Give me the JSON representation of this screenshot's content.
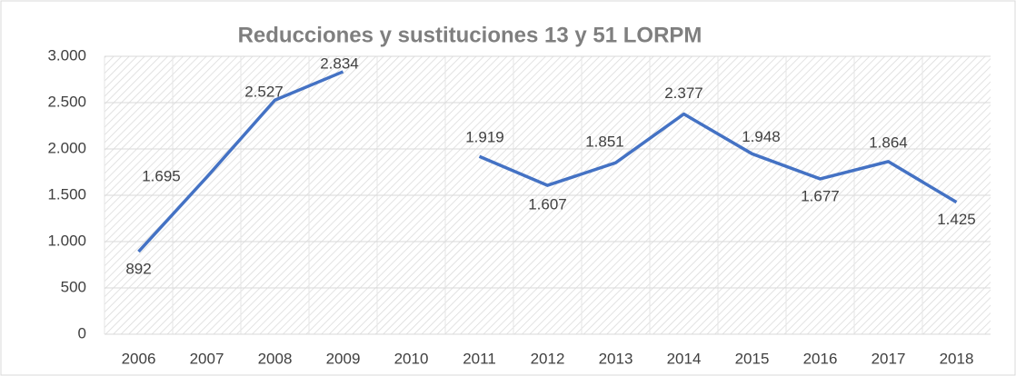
{
  "chart_data": {
    "type": "line",
    "title": "Reducciones y sustituciones 13 y 51 LORPM",
    "categories": [
      "2006",
      "2007",
      "2008",
      "2009",
      "2010",
      "2011",
      "2012",
      "2013",
      "2014",
      "2015",
      "2016",
      "2017",
      "2018"
    ],
    "values": [
      892,
      1695,
      2527,
      2834,
      null,
      1919,
      1607,
      1851,
      2377,
      1948,
      1677,
      1864,
      1425
    ],
    "value_labels": [
      "892",
      "1.695",
      "2.527",
      "2.834",
      null,
      "1.919",
      "1.607",
      "1.851",
      "2.377",
      "1.948",
      "1.677",
      "1.864",
      "1.425"
    ],
    "color": "#4472c4",
    "ylim": [
      0,
      3000
    ],
    "yticks": [
      0,
      500,
      {
        "value": 1000,
        "label": "1.000"
      },
      {
        "value": 1500,
        "label": "1.500"
      },
      {
        "value": 2000,
        "label": "2.000"
      },
      {
        "value": 2500,
        "label": "2.500"
      },
      {
        "value": 3000,
        "label": "3.000"
      }
    ],
    "grid": true
  }
}
